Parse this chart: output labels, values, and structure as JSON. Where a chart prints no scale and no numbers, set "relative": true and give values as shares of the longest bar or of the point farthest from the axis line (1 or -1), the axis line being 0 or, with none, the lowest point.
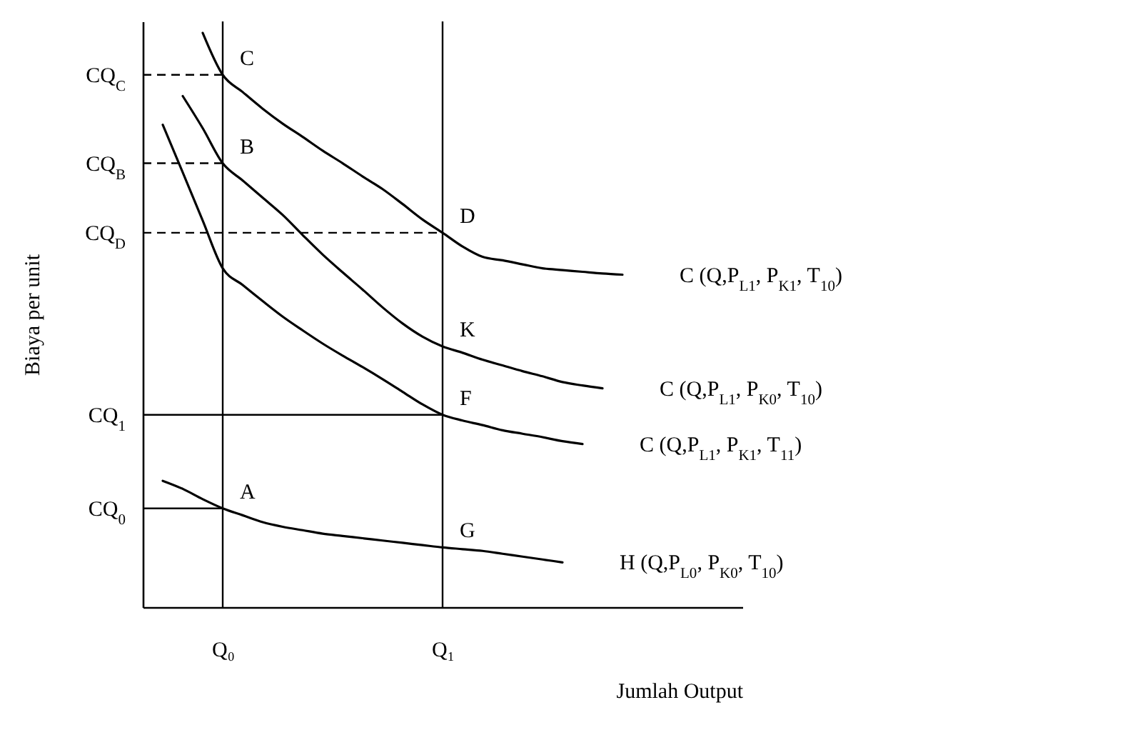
{
  "chart_data": {
    "type": "line",
    "relative": true,
    "xlabel": "Jumlah Output",
    "ylabel": "Biaya per unit",
    "grid": false,
    "marker": "none",
    "line_style": "solid",
    "categories": [
      null,
      null,
      null,
      null,
      "Q₀",
      null,
      null,
      null,
      null,
      null,
      null,
      null,
      null,
      null,
      null,
      "Q₁",
      null,
      null,
      null,
      null,
      null,
      null,
      null,
      null,
      null,
      null,
      null,
      null,
      null,
      null,
      null
    ],
    "series": [
      {
        "name": "C (Q,P$_{L1}$, P$_{K1}$, T$_{10}$)",
        "color": "#000000",
        "values": [
          null,
          null,
          null,
          1.0,
          0.927,
          0.897,
          0.868,
          0.842,
          0.819,
          0.795,
          0.773,
          0.75,
          0.728,
          0.702,
          0.675,
          0.652,
          0.628,
          0.61,
          0.604,
          0.597,
          0.59,
          0.587,
          0.584,
          0.581,
          0.579,
          null,
          null,
          null,
          null,
          null,
          null
        ]
      },
      {
        "name": "C (Q,P$_{L1}$, P$_{K0}$, T$_{10}$)",
        "color": "#000000",
        "values": [
          null,
          null,
          0.89,
          0.834,
          0.773,
          0.743,
          0.713,
          0.683,
          0.648,
          0.614,
          0.583,
          0.553,
          0.522,
          0.494,
          0.471,
          0.454,
          0.443,
          0.431,
          0.421,
          0.411,
          0.402,
          0.392,
          0.386,
          0.381,
          null,
          null,
          null,
          null,
          null,
          null,
          null
        ]
      },
      {
        "name": "C (Q,P$_{L1}$, P$_{K1}$, T$_{11}$)",
        "color": "#000000",
        "values": [
          null,
          0.84,
          0.757,
          0.673,
          0.59,
          0.561,
          0.533,
          0.506,
          0.482,
          0.459,
          0.438,
          0.418,
          0.397,
          0.375,
          0.353,
          0.335,
          0.325,
          0.317,
          0.308,
          0.302,
          0.296,
          0.289,
          0.284,
          null,
          null,
          null,
          null,
          null,
          null,
          null,
          null
        ]
      },
      {
        "name": "H (Q,P$_{L0}$, P$_{K0}$, T$_{10}$)",
        "color": "#000000",
        "values": [
          null,
          0.22,
          0.206,
          0.188,
          0.172,
          0.16,
          0.148,
          0.14,
          0.134,
          0.128,
          0.124,
          0.12,
          0.116,
          0.112,
          0.108,
          0.104,
          0.101,
          0.098,
          0.093,
          0.088,
          0.083,
          0.078,
          null,
          null,
          null,
          null,
          null,
          null,
          null,
          null,
          null
        ]
      }
    ],
    "ref_lines": [
      {
        "axis": "y",
        "value": 0.927,
        "label": "CQ$_{C}$",
        "color": "#000000",
        "line_style": "dashed"
      },
      {
        "axis": "y",
        "value": 0.773,
        "label": "CQ$_{B}$",
        "color": "#000000",
        "line_style": "dashed"
      },
      {
        "axis": "y",
        "value": 0.652,
        "label": "CQ$_{D}$",
        "color": "#000000",
        "line_style": "dashed"
      },
      {
        "axis": "y",
        "value": 0.335,
        "label": "CQ$_{1}$",
        "color": "#000000",
        "line_style": "solid"
      },
      {
        "axis": "y",
        "value": 0.172,
        "label": "CQ$_{0}$",
        "color": "#000000",
        "line_style": "solid"
      },
      {
        "axis": "x",
        "value": "Q₀",
        "color": "#000000",
        "line_style": "solid"
      },
      {
        "axis": "x",
        "value": "Q₁",
        "color": "#000000",
        "line_style": "solid"
      }
    ],
    "annotations": [
      {
        "text": "C",
        "x": "Q₀",
        "y": 0.927
      },
      {
        "text": "B",
        "x": "Q₀",
        "y": 0.773
      },
      {
        "text": "D",
        "x": "Q₁",
        "y": 0.652
      },
      {
        "text": "K",
        "x": "Q₁",
        "y": 0.454
      },
      {
        "text": "F",
        "x": "Q₁",
        "y": 0.335
      },
      {
        "text": "A",
        "x": "Q₀",
        "y": 0.172
      },
      {
        "text": "G",
        "x": "Q₁",
        "y": 0.104
      }
    ]
  }
}
